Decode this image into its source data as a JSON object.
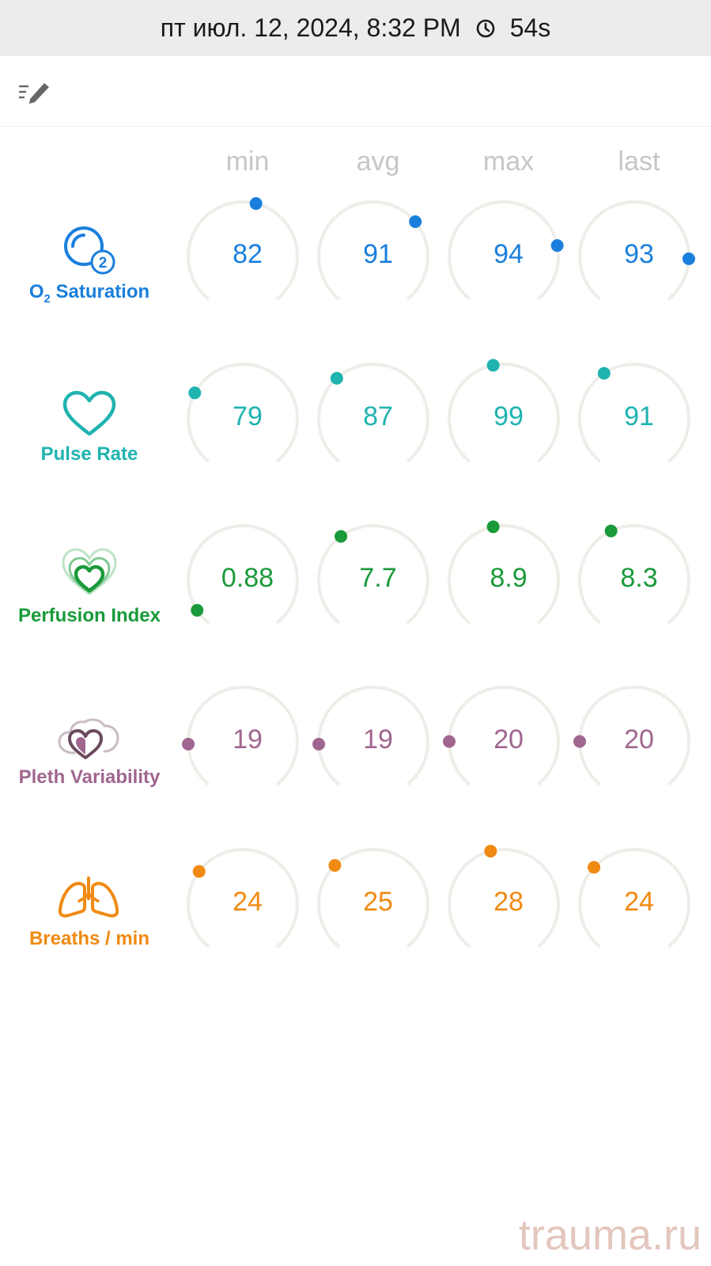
{
  "status_bar": {
    "datetime": "пт июл. 12, 2024, 8:32 PM",
    "duration": "54s"
  },
  "columns": [
    "min",
    "avg",
    "max",
    "last"
  ],
  "metrics": [
    {
      "id": "o2",
      "label_main": "O",
      "label_sub": "2",
      "label_rest": " Saturation",
      "color": "#1a7fdc",
      "icon": "o2-bubble-icon",
      "values": [
        "82",
        "91",
        "94",
        "93"
      ],
      "fractions": [
        0.55,
        0.68,
        0.78,
        0.83
      ]
    },
    {
      "id": "pulse",
      "label": "Pulse Rate",
      "color": "#1fb3b0",
      "icon": "heart-icon",
      "values": [
        "79",
        "87",
        "99",
        "91"
      ],
      "fractions": [
        0.28,
        0.35,
        0.46,
        0.38
      ]
    },
    {
      "id": "pi",
      "label": "Perfusion Index",
      "color": "#1a9a3a",
      "icon": "layered-hearts-icon",
      "values": [
        "0.88",
        "7.7",
        "8.9",
        "8.3"
      ],
      "fractions": [
        0.06,
        0.37,
        0.46,
        0.41
      ]
    },
    {
      "id": "pvi",
      "label": "Pleth Variability",
      "color": "#a0668f",
      "icon": "cloud-heart-icon",
      "values": [
        "19",
        "19",
        "20",
        "20"
      ],
      "fractions": [
        0.17,
        0.17,
        0.18,
        0.18
      ]
    },
    {
      "id": "rr",
      "label": "Breaths / min",
      "color": "#f08a12",
      "icon": "lungs-icon",
      "values": [
        "24",
        "25",
        "28",
        "24"
      ],
      "fractions": [
        0.31,
        0.34,
        0.45,
        0.33
      ]
    }
  ],
  "watermark": "trauma.ru"
}
